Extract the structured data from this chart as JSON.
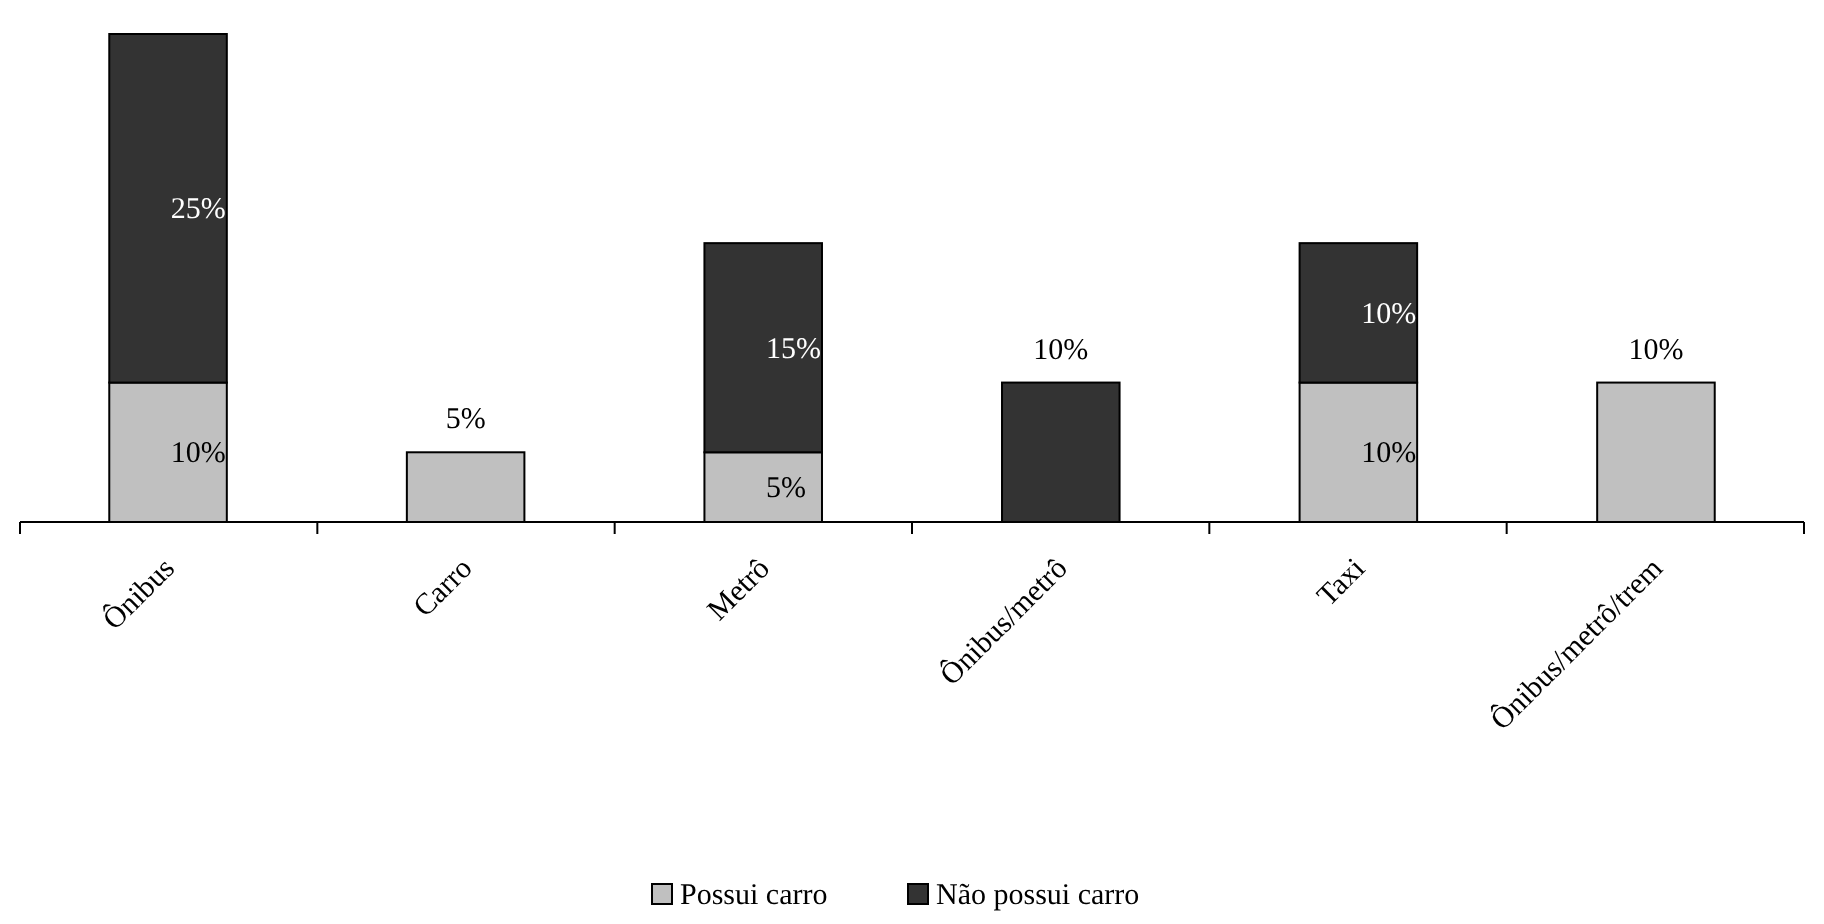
{
  "chart_data": {
    "type": "bar",
    "stacked": true,
    "legend": "bottom",
    "categories": [
      "Ônibus",
      "Carro",
      "Metrô",
      "Ônibus/metrô",
      "Taxi",
      "Ônibus/metrô/trem"
    ],
    "series": [
      {
        "name": "Possui carro",
        "color": "#c0c0c0",
        "values": [
          10,
          5,
          5,
          null,
          10,
          10
        ],
        "value_labels": [
          "10%",
          "5%",
          "5%",
          null,
          "10%",
          "10%"
        ]
      },
      {
        "name": "Não possui carro",
        "color": "#333333",
        "values": [
          25,
          null,
          15,
          10,
          10,
          null
        ],
        "value_labels": [
          "25%",
          null,
          "15%",
          "10%",
          "10%",
          null
        ]
      }
    ]
  }
}
